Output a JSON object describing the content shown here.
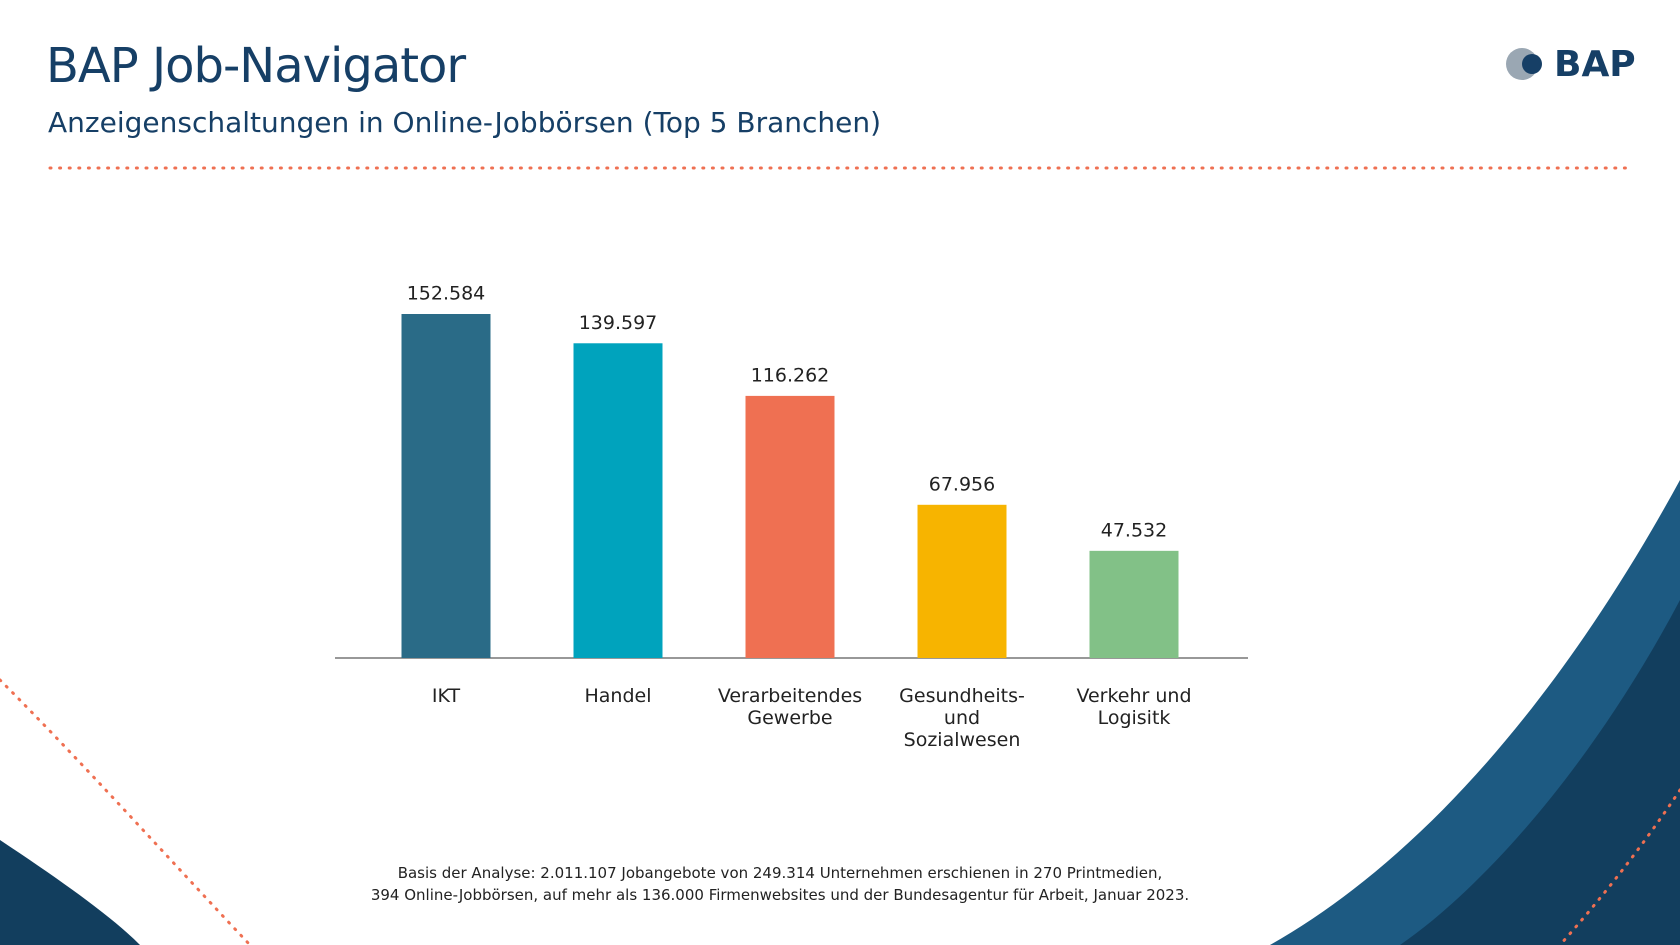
{
  "header": {
    "title": "BAP Job-Navigator",
    "subtitle": "Anzeigenschaltungen in Online-Jobbörsen (Top 5 Branchen)",
    "logo_text": "BAP"
  },
  "chart_data": {
    "type": "bar",
    "categories": [
      "IKT",
      "Handel",
      "Verarbeitendes\nGewerbe",
      "Gesundheits-\nund\nSozialwesen",
      "Verkehr und\nLogisitk"
    ],
    "values": [
      152584,
      139597,
      116262,
      67956,
      47532
    ],
    "value_labels": [
      "152.584",
      "139.597",
      "116.262",
      "67.956",
      "47.532"
    ],
    "colors": [
      "#2a6b87",
      "#00a3bd",
      "#ef7052",
      "#f7b400",
      "#82c187"
    ]
  },
  "footnote": [
    "Basis der Analyse: 2.011.107 Jobangebote von 249.314 Unternehmen erschienen in 270 Printmedien,",
    "394 Online-Jobbörsen, auf mehr als 136.000 Firmenwebsites und der Bundesagentur für Arbeit, Januar 2023."
  ]
}
